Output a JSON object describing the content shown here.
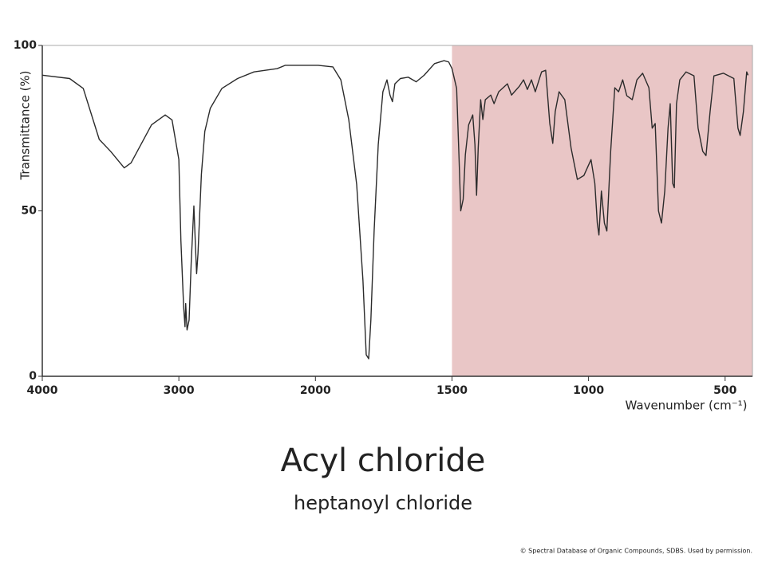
{
  "chart_data": {
    "type": "line",
    "title": "Acyl chloride",
    "subtitle": "heptanoyl chloride",
    "credit": "© Spectral Database of Organic Compounds, SDBS. Used by permission.",
    "xlabel": "Wavenumber (cm⁻¹)",
    "ylabel": "Transmittance (%)",
    "x": [
      4000,
      3800,
      3700,
      3583,
      3500,
      3400,
      3350,
      3200,
      3100,
      3050,
      3000,
      2985,
      2965,
      2955,
      2950,
      2940,
      2925,
      2910,
      2890,
      2880,
      2870,
      2860,
      2835,
      2810,
      2770,
      2685,
      2570,
      2450,
      2280,
      2220,
      1990,
      1936,
      1907,
      1878,
      1849,
      1826,
      1814,
      1805,
      1797,
      1785,
      1770,
      1753,
      1738,
      1727,
      1718,
      1709,
      1689,
      1660,
      1631,
      1602,
      1564,
      1529,
      1512,
      1500,
      1483,
      1474,
      1468,
      1459,
      1451,
      1439,
      1424,
      1416,
      1410,
      1404,
      1395,
      1387,
      1378,
      1358,
      1346,
      1329,
      1297,
      1282,
      1253,
      1238,
      1224,
      1209,
      1195,
      1172,
      1157,
      1142,
      1131,
      1122,
      1108,
      1087,
      1064,
      1041,
      1017,
      991,
      977,
      968,
      962,
      953,
      942,
      933,
      919,
      904,
      890,
      875,
      860,
      840,
      823,
      802,
      779,
      767,
      756,
      744,
      733,
      721,
      709,
      701,
      692,
      686,
      678,
      666,
      643,
      614,
      599,
      582,
      570,
      555,
      541,
      506,
      468,
      453,
      445,
      433,
      421,
      416
    ],
    "values": [
      91,
      90,
      87,
      71.6,
      68,
      63,
      64.5,
      76,
      79,
      77.5,
      65.5,
      41,
      21,
      15,
      22,
      14,
      17,
      34,
      51.5,
      41,
      31,
      37,
      61,
      74,
      81,
      87,
      90,
      92,
      93,
      94,
      94,
      93.5,
      89.6,
      77.6,
      58,
      29,
      6.5,
      5.3,
      17,
      44,
      70,
      86,
      89.6,
      85,
      83,
      88.4,
      90,
      90.4,
      89,
      91,
      94.5,
      95.4,
      95,
      93,
      87,
      65.5,
      50,
      53.5,
      67,
      76,
      79,
      70,
      54.7,
      69,
      83.6,
      77.6,
      83.6,
      85,
      82.4,
      86,
      88.4,
      85,
      87.7,
      89.6,
      86.7,
      89.6,
      86,
      92,
      92.5,
      76.4,
      70.4,
      80,
      86,
      83.6,
      69,
      59.5,
      60.7,
      65.5,
      58.3,
      46.3,
      42.7,
      56,
      46.3,
      43.9,
      68,
      87.2,
      86,
      89.6,
      84.8,
      83.6,
      89.6,
      91.6,
      87.2,
      75,
      76.4,
      50,
      46.3,
      56,
      75,
      82.4,
      58.3,
      57,
      82.4,
      89.6,
      92,
      90.8,
      75,
      68,
      66.7,
      80,
      90.8,
      91.6,
      90,
      75,
      72.8,
      80,
      92,
      91
    ],
    "color": "#2b2b2b",
    "xlim": [
      4000,
      400
    ],
    "xticks": [
      4000,
      3000,
      2000,
      1500,
      1000,
      500
    ],
    "ylim": [
      0,
      100
    ],
    "yticks": [
      0,
      50,
      100
    ],
    "highlight": [
      1500,
      400
    ],
    "highlight_color": "#e9c6c6"
  }
}
